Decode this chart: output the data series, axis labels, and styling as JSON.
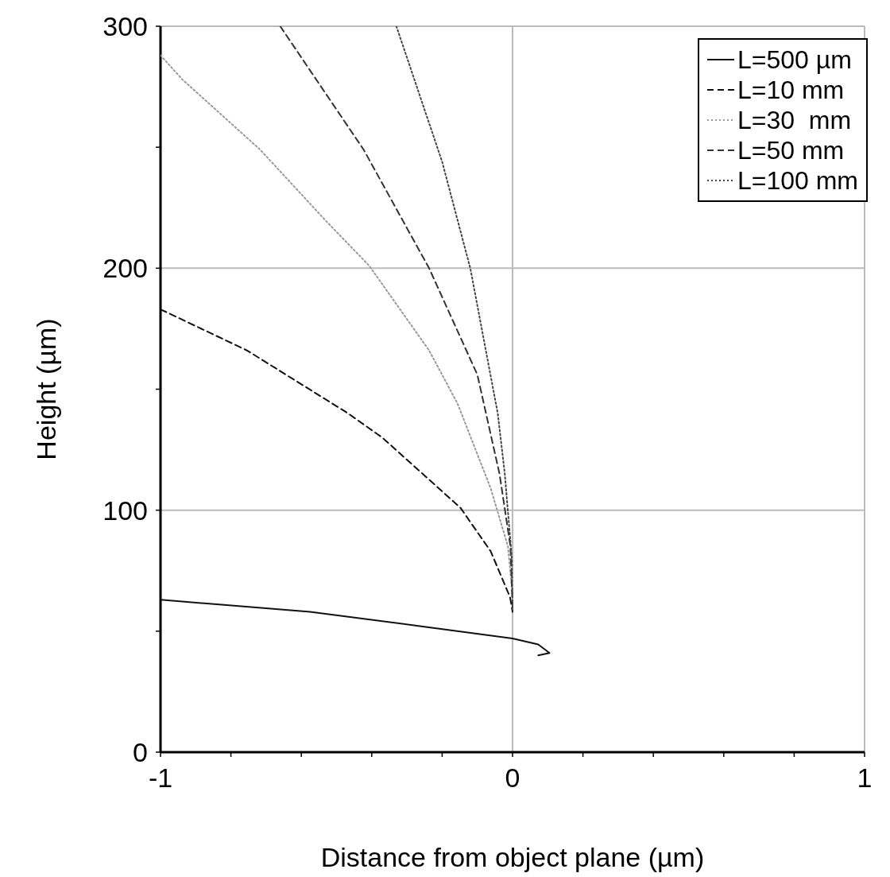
{
  "chart_data": {
    "type": "line",
    "xlabel": "Distance from object plane (µm)",
    "ylabel": "Height (µm)",
    "xlim": [
      -1,
      1
    ],
    "xticks": [
      -1,
      {
        "value": -0.8,
        "label": null
      },
      {
        "value": -0.6,
        "label": null
      },
      {
        "value": -0.4,
        "label": null
      },
      {
        "value": -0.2,
        "label": null
      },
      0,
      {
        "value": 0.2,
        "label": null
      },
      {
        "value": 0.4,
        "label": null
      },
      {
        "value": 0.6,
        "label": null
      },
      {
        "value": 0.8,
        "label": null
      },
      1
    ],
    "ylim": [
      0,
      300
    ],
    "yticks": [
      0,
      {
        "value": 50,
        "label": null
      },
      100,
      {
        "value": 150,
        "label": null
      },
      200,
      {
        "value": 250,
        "label": null
      },
      300
    ],
    "grid": true,
    "legend": "top right",
    "marker": "none",
    "series": [
      {
        "name": "L=500 µm",
        "color": "#111111",
        "line_style": "solid",
        "x": [
          -1,
          -0.575,
          -0.259,
          0,
          0.073,
          0.105,
          0.073
        ],
        "values": [
          63,
          58,
          52,
          47,
          44.5,
          41,
          40
        ]
      },
      {
        "name": "L=10 mm",
        "color": "#111111",
        "line_style": "dashed",
        "x": [
          -1,
          -0.754,
          -0.467,
          -0.37,
          -0.148,
          -0.062,
          -0.007,
          0
        ],
        "values": [
          183,
          166,
          140,
          130,
          101,
          83,
          64,
          58
        ]
      },
      {
        "name": "L=30  mm",
        "color": "#999999",
        "line_style": "dotted",
        "x": [
          -1,
          -0.938,
          -0.717,
          -0.533,
          -0.407,
          -0.237,
          -0.156,
          -0.062,
          -0.013,
          0
        ],
        "values": [
          288,
          278,
          249,
          220,
          201,
          166,
          144,
          109,
          85,
          65
        ]
      },
      {
        "name": "L=50 mm",
        "color": "#333333",
        "line_style": "dashed",
        "x": [
          -0.66,
          -0.423,
          -0.237,
          -0.1,
          -0.037,
          -0.006,
          0
        ],
        "values": [
          300,
          249,
          200,
          156,
          115,
          85,
          60
        ]
      },
      {
        "name": "L=100 mm",
        "color": "#444444",
        "line_style": "dotted",
        "x": [
          -0.33,
          -0.2,
          -0.12,
          -0.042,
          -0.022,
          -0.002,
          0
        ],
        "values": [
          300,
          244,
          200,
          140,
          115,
          80,
          58
        ]
      }
    ]
  }
}
